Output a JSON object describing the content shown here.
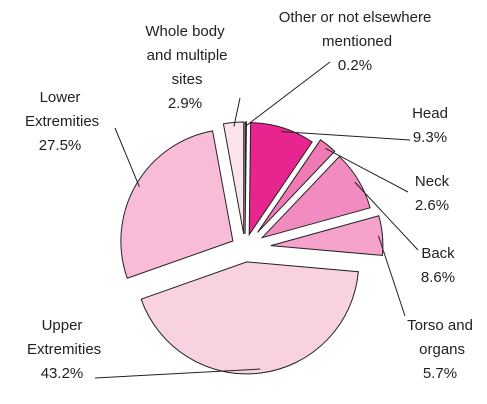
{
  "chart_data": {
    "type": "pie",
    "categories": [
      "Other or not elsewhere mentioned",
      "Head",
      "Neck",
      "Back",
      "Torso and organs",
      "Upper Extremities",
      "Lower Extremities",
      "Whole body and multiple sites"
    ],
    "values": [
      0.2,
      9.3,
      2.6,
      8.6,
      5.7,
      43.2,
      27.5,
      2.9
    ],
    "value_labels": [
      "0.2%",
      "9.3%",
      "2.6%",
      "8.6%",
      "5.7%",
      "43.2%",
      "27.5%",
      "2.9%"
    ],
    "colors": [
      "#d8006e",
      "#e8258f",
      "#f07ab4",
      "#f28cc0",
      "#f5a3cb",
      "#f9d2e2",
      "#f8bcd9",
      "#fde3ee"
    ]
  }
}
